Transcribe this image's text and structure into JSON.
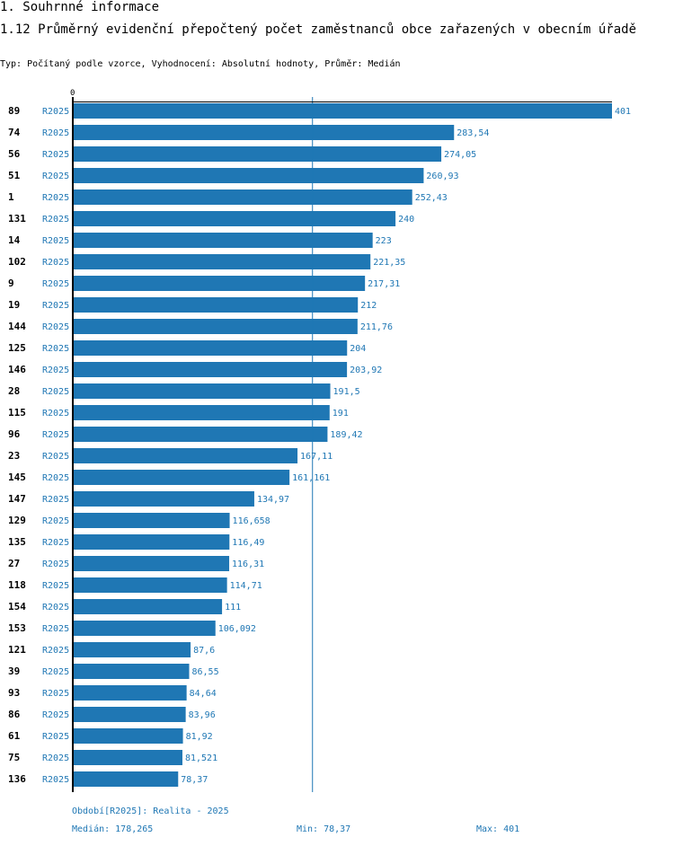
{
  "section_title": "1. Souhrnné informace",
  "chart_title": "1.12 Průměrný evidenční přepočtený počet zaměstnanců obce zařazených v obecním úřadě",
  "subtitle": "Typ: Počítaný podle vzorce, Vyhodnocení: Absolutní hodnoty, Průměr: Medián",
  "colors": {
    "bar": "#1f77b4",
    "label": "#1f77b4"
  },
  "chart_data": {
    "type": "bar",
    "orientation": "horizontal",
    "axis_zero_label": "0",
    "xlim": [
      0,
      401
    ],
    "median": 178.265,
    "categories": [
      "89",
      "74",
      "56",
      "51",
      "1",
      "131",
      "14",
      "102",
      "9",
      "19",
      "144",
      "125",
      "146",
      "28",
      "115",
      "96",
      "23",
      "145",
      "147",
      "129",
      "135",
      "27",
      "118",
      "154",
      "153",
      "121",
      "39",
      "93",
      "86",
      "61",
      "75",
      "136"
    ],
    "series": [
      {
        "name": "R2025",
        "labels": [
          "401",
          "283,54",
          "274,05",
          "260,93",
          "252,43",
          "240",
          "223",
          "221,35",
          "217,31",
          "212",
          "211,76",
          "204",
          "203,92",
          "191,5",
          "191",
          "189,42",
          "167,11",
          "161,161",
          "134,97",
          "116,658",
          "116,49",
          "116,31",
          "114,71",
          "111",
          "106,092",
          "87,6",
          "86,55",
          "84,64",
          "83,96",
          "81,92",
          "81,521",
          "78,37"
        ],
        "values": [
          401,
          283.54,
          274.05,
          260.93,
          252.43,
          240,
          223,
          221.35,
          217.31,
          212,
          211.76,
          204,
          203.92,
          191.5,
          191,
          189.42,
          167.11,
          161.161,
          134.97,
          116.658,
          116.49,
          116.31,
          114.71,
          111,
          106.092,
          87.6,
          86.55,
          84.64,
          83.96,
          81.92,
          81.521,
          78.37
        ]
      }
    ]
  },
  "footer": {
    "period": "Období[R2025]: Realita - 2025",
    "median": "Medián: 178,265",
    "min": "Min: 78,37",
    "max": "Max: 401"
  }
}
